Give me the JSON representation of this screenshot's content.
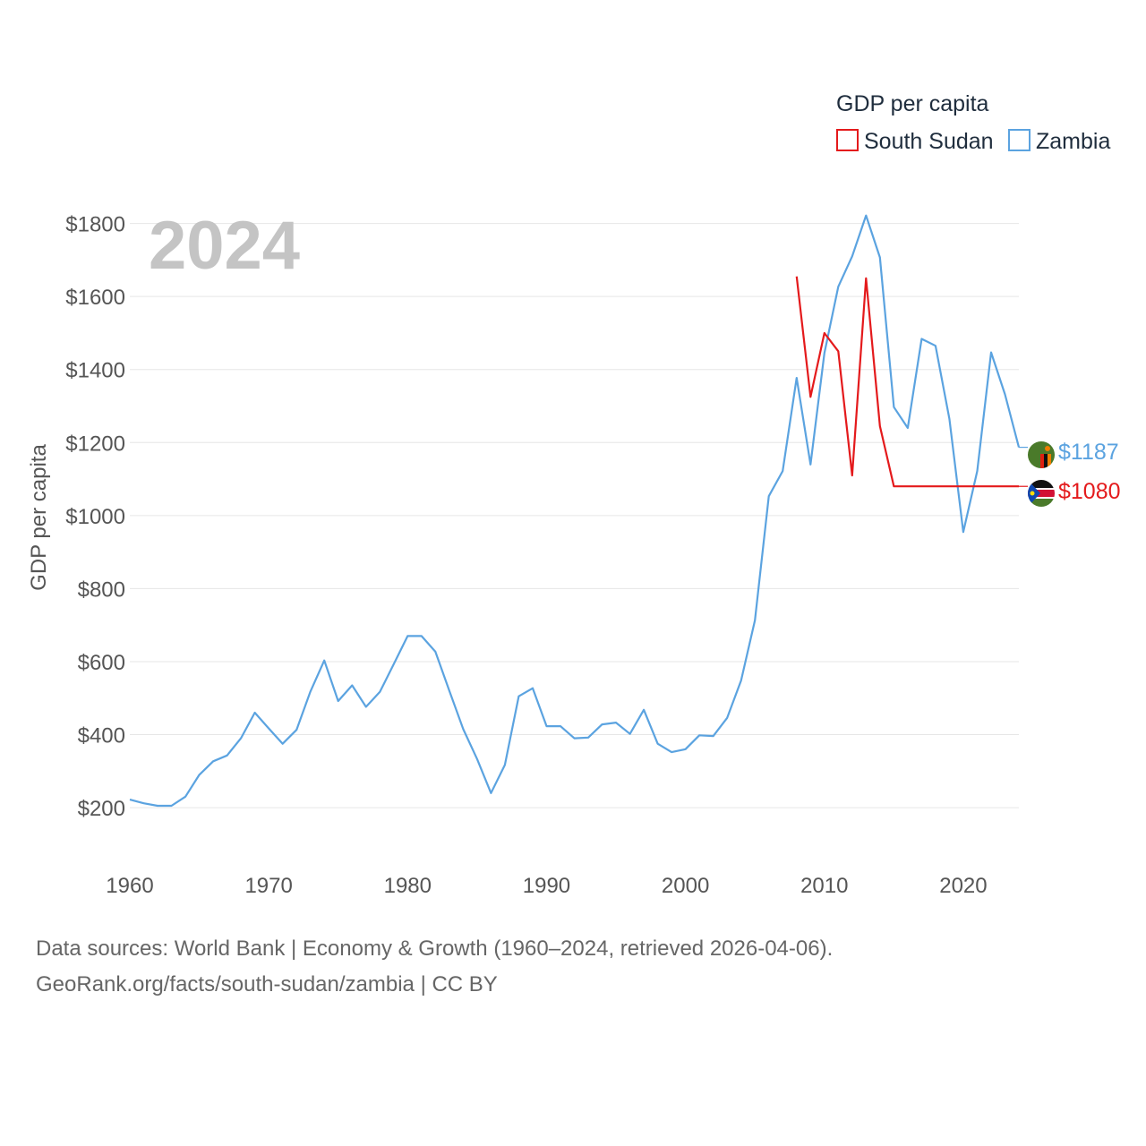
{
  "chart_data": {
    "type": "line",
    "year_label": "2024",
    "ylabel": "GDP per capita",
    "legend": {
      "title": "GDP per capita"
    },
    "xlim": [
      1960,
      2024
    ],
    "ylim": [
      80,
      1880
    ],
    "x_ticks": [
      "1960",
      "1970",
      "1980",
      "1990",
      "2000",
      "2010",
      "2020"
    ],
    "y_ticks": [
      "$200",
      "$400",
      "$600",
      "$800",
      "$1000",
      "$1200",
      "$1400",
      "$1600",
      "$1800"
    ],
    "series": [
      {
        "name": "South Sudan",
        "color": "#e41a1c",
        "end_label": "$1080",
        "x": [
          2008,
          2009,
          2010,
          2011,
          2012,
          2013,
          2014,
          2015,
          2016,
          2017,
          2018,
          2019,
          2020,
          2021,
          2022,
          2023,
          2024
        ],
        "values": [
          1655,
          1325,
          1500,
          1450,
          1110,
          1650,
          1245,
          1080,
          1080,
          1080,
          1080,
          1080,
          1080,
          1080,
          1080,
          1080,
          1080
        ]
      },
      {
        "name": "Zambia",
        "color": "#5ba3e0",
        "end_label": "$1187",
        "x": [
          1960,
          1961,
          1962,
          1963,
          1964,
          1965,
          1966,
          1967,
          1968,
          1969,
          1970,
          1971,
          1972,
          1973,
          1974,
          1975,
          1976,
          1977,
          1978,
          1979,
          1980,
          1981,
          1982,
          1983,
          1984,
          1985,
          1986,
          1987,
          1988,
          1989,
          1990,
          1991,
          1992,
          1993,
          1994,
          1995,
          1996,
          1997,
          1998,
          1999,
          2000,
          2001,
          2002,
          2003,
          2004,
          2005,
          2006,
          2007,
          2008,
          2009,
          2010,
          2011,
          2012,
          2013,
          2014,
          2015,
          2016,
          2017,
          2018,
          2019,
          2020,
          2021,
          2022,
          2023,
          2024
        ],
        "values": [
          222,
          212,
          205,
          205,
          230,
          290,
          327,
          343,
          390,
          460,
          417,
          375,
          413,
          518,
          603,
          492,
          535,
          476,
          517,
          593,
          670,
          670,
          627,
          520,
          415,
          333,
          240,
          317,
          505,
          527,
          423,
          423,
          390,
          392,
          428,
          433,
          402,
          468,
          375,
          352,
          360,
          398,
          396,
          446,
          548,
          713,
          1053,
          1122,
          1377,
          1140,
          1445,
          1627,
          1710,
          1822,
          1707,
          1297,
          1240,
          1484,
          1465,
          1265,
          955,
          1122,
          1447,
          1332,
          1187
        ]
      }
    ]
  },
  "source": {
    "line1": "Data sources: World Bank | Economy & Growth (1960–2024, retrieved 2026-04-06).",
    "line2": "GeoRank.org/facts/south-sudan/zambia | CC BY"
  }
}
